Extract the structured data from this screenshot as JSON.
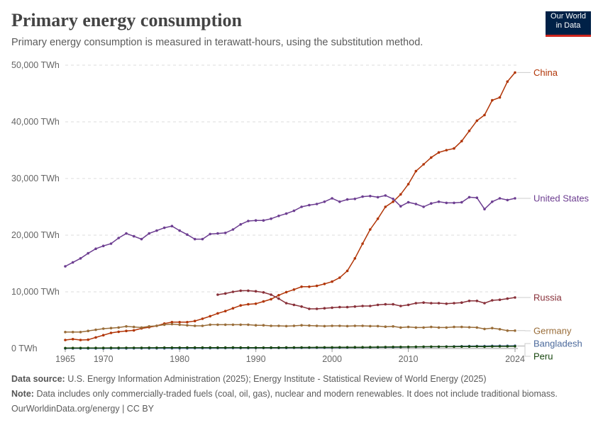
{
  "title": "Primary energy consumption",
  "subtitle": "Primary energy consumption is measured in terawatt-hours, using the substitution method.",
  "logo": {
    "line1": "Our World",
    "line2": "in Data"
  },
  "footer": {
    "source_label": "Data source:",
    "source_text": "U.S. Energy Information Administration (2025); Energy Institute - Statistical Review of World Energy (2025)",
    "note_label": "Note:",
    "note_text": "Data includes only commercially-traded fuels (coal, oil, gas), nuclear and modern renewables. It does not include traditional biomass.",
    "url": "OurWorldinData.org/energy | CC BY"
  },
  "chart_data": {
    "type": "line",
    "title": "Primary energy consumption",
    "subtitle": "Primary energy consumption is measured in terawatt-hours, using the substitution method.",
    "xlabel": "",
    "ylabel": "",
    "xlim": [
      1965,
      2024
    ],
    "ylim": [
      0,
      50000
    ],
    "x_ticks": [
      1965,
      1970,
      1980,
      1990,
      2000,
      2010,
      2024
    ],
    "y_ticks": [
      {
        "value": 0,
        "label": "0 TWh"
      },
      {
        "value": 10000,
        "label": "10,000 TWh"
      },
      {
        "value": 20000,
        "label": "20,000 TWh"
      },
      {
        "value": 30000,
        "label": "30,000 TWh"
      },
      {
        "value": 40000,
        "label": "40,000 TWh"
      },
      {
        "value": 50000,
        "label": "50,000 TWh"
      }
    ],
    "grid": "horizontal dashed",
    "legend": "right-end labels",
    "series": [
      {
        "name": "China",
        "color": "#b13507",
        "start": 1965,
        "values": [
          1500,
          1650,
          1500,
          1550,
          1950,
          2350,
          2750,
          2950,
          3100,
          3200,
          3550,
          3750,
          4000,
          4400,
          4650,
          4650,
          4650,
          4850,
          5250,
          5700,
          6200,
          6600,
          7100,
          7600,
          7800,
          7900,
          8300,
          8700,
          9400,
          9950,
          10400,
          10900,
          10900,
          11050,
          11400,
          11800,
          12500,
          13700,
          15900,
          18500,
          21000,
          22900,
          25000,
          25900,
          27200,
          29000,
          31300,
          32500,
          33700,
          34600,
          35000,
          35300,
          36600,
          38400,
          40200,
          41200,
          43800,
          44300,
          47100,
          48700
        ]
      },
      {
        "name": "United States",
        "color": "#6d3e91",
        "start": 1965,
        "values": [
          14500,
          15200,
          15900,
          16800,
          17600,
          18100,
          18500,
          19500,
          20300,
          19800,
          19300,
          20300,
          20800,
          21300,
          21600,
          20800,
          20100,
          19300,
          19300,
          20200,
          20300,
          20400,
          21000,
          21900,
          22500,
          22600,
          22600,
          22900,
          23400,
          23800,
          24300,
          25000,
          25300,
          25500,
          25900,
          26500,
          25900,
          26300,
          26400,
          26800,
          26900,
          26700,
          27000,
          26400,
          25100,
          25800,
          25500,
          25000,
          25600,
          25900,
          25700,
          25700,
          25800,
          26700,
          26600,
          24600,
          25900,
          26500,
          26200,
          26500
        ]
      },
      {
        "name": "Russia",
        "color": "#883039",
        "start": 1985,
        "values": [
          9500,
          9700,
          10000,
          10200,
          10200,
          10100,
          9900,
          9500,
          8800,
          8000,
          7700,
          7400,
          7000,
          7000,
          7100,
          7200,
          7300,
          7300,
          7400,
          7500,
          7500,
          7700,
          7800,
          7800,
          7500,
          7700,
          8000,
          8100,
          8000,
          8000,
          7900,
          8000,
          8100,
          8400,
          8400,
          8000,
          8500,
          8600,
          8800,
          9000
        ]
      },
      {
        "name": "Germany",
        "color": "#996d39",
        "start": 1965,
        "values": [
          2900,
          2900,
          2900,
          3100,
          3300,
          3500,
          3600,
          3700,
          3900,
          3800,
          3700,
          3900,
          4000,
          4200,
          4300,
          4200,
          4100,
          4000,
          4000,
          4200,
          4200,
          4200,
          4200,
          4200,
          4200,
          4100,
          4100,
          4000,
          4000,
          3950,
          4000,
          4100,
          4050,
          4000,
          3950,
          4000,
          4000,
          3950,
          4000,
          4000,
          3950,
          3950,
          3850,
          3900,
          3700,
          3800,
          3700,
          3700,
          3800,
          3700,
          3700,
          3800,
          3800,
          3750,
          3700,
          3450,
          3600,
          3400,
          3150,
          3150
        ]
      },
      {
        "name": "Bangladesh",
        "color": "#4c6a9c",
        "start": 1965,
        "values": [
          10,
          10,
          10,
          12,
          13,
          15,
          15,
          16,
          18,
          20,
          22,
          25,
          28,
          30,
          33,
          36,
          40,
          45,
          50,
          55,
          60,
          65,
          70,
          75,
          80,
          85,
          90,
          95,
          100,
          105,
          110,
          115,
          120,
          125,
          130,
          140,
          150,
          160,
          170,
          180,
          190,
          200,
          210,
          220,
          240,
          260,
          280,
          300,
          310,
          330,
          350,
          380,
          400,
          420,
          440,
          430,
          460,
          470,
          480,
          490
        ]
      },
      {
        "name": "Peru",
        "color": "#18470f",
        "start": 1965,
        "values": [
          80,
          85,
          90,
          95,
          100,
          105,
          110,
          115,
          120,
          125,
          130,
          135,
          140,
          145,
          150,
          155,
          160,
          165,
          160,
          160,
          160,
          165,
          170,
          165,
          160,
          150,
          155,
          160,
          165,
          170,
          180,
          185,
          190,
          195,
          200,
          205,
          210,
          215,
          220,
          230,
          240,
          250,
          260,
          270,
          280,
          290,
          300,
          310,
          320,
          330,
          330,
          330,
          340,
          350,
          360,
          320,
          360,
          370,
          380,
          390
        ]
      }
    ]
  }
}
